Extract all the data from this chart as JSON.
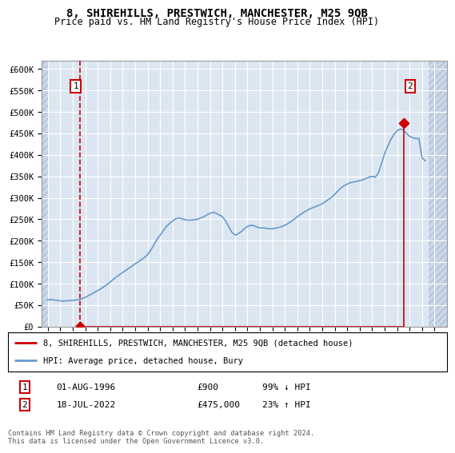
{
  "title": "8, SHIREHILLS, PRESTWICH, MANCHESTER, M25 9QB",
  "subtitle": "Price paid vs. HM Land Registry's House Price Index (HPI)",
  "ylim": [
    0,
    620000
  ],
  "yticks": [
    0,
    50000,
    100000,
    150000,
    200000,
    250000,
    300000,
    350000,
    400000,
    450000,
    500000,
    550000,
    600000
  ],
  "ytick_labels": [
    "£0",
    "£50K",
    "£100K",
    "£150K",
    "£200K",
    "£250K",
    "£300K",
    "£350K",
    "£400K",
    "£450K",
    "£500K",
    "£550K",
    "£600K"
  ],
  "xlim_start": 1993.5,
  "xlim_end": 2026.0,
  "hpi_color": "#6699cc",
  "sale_color": "#cc0000",
  "marker_color": "#cc0000",
  "background_plot": "#dce6f1",
  "background_hatch": "#c8d8e8",
  "grid_color": "#ffffff",
  "sale1_x": 1996.58,
  "sale1_y": 900,
  "sale2_x": 2022.54,
  "sale2_y": 475000,
  "hatch_left_end": 1994.0,
  "hatch_right_start": 2024.5,
  "legend_label1": "8, SHIREHILLS, PRESTWICH, MANCHESTER, M25 9QB (detached house)",
  "legend_label2": "HPI: Average price, detached house, Bury",
  "note1_date": "01-AUG-1996",
  "note1_price": "£900",
  "note1_hpi": "99% ↓ HPI",
  "note2_date": "18-JUL-2022",
  "note2_price": "£475,000",
  "note2_hpi": "23% ↑ HPI",
  "footer": "Contains HM Land Registry data © Crown copyright and database right 2024.\nThis data is licensed under the Open Government Licence v3.0.",
  "hpi_data_x": [
    1994.0,
    1994.25,
    1994.5,
    1994.75,
    1995.0,
    1995.25,
    1995.5,
    1995.75,
    1996.0,
    1996.25,
    1996.5,
    1996.75,
    1997.0,
    1997.25,
    1997.5,
    1997.75,
    1998.0,
    1998.25,
    1998.5,
    1998.75,
    1999.0,
    1999.25,
    1999.5,
    1999.75,
    2000.0,
    2000.25,
    2000.5,
    2000.75,
    2001.0,
    2001.25,
    2001.5,
    2001.75,
    2002.0,
    2002.25,
    2002.5,
    2002.75,
    2003.0,
    2003.25,
    2003.5,
    2003.75,
    2004.0,
    2004.25,
    2004.5,
    2004.75,
    2005.0,
    2005.25,
    2005.5,
    2005.75,
    2006.0,
    2006.25,
    2006.5,
    2006.75,
    2007.0,
    2007.25,
    2007.5,
    2007.75,
    2008.0,
    2008.25,
    2008.5,
    2008.75,
    2009.0,
    2009.25,
    2009.5,
    2009.75,
    2010.0,
    2010.25,
    2010.5,
    2010.75,
    2011.0,
    2011.25,
    2011.5,
    2011.75,
    2012.0,
    2012.25,
    2012.5,
    2012.75,
    2013.0,
    2013.25,
    2013.5,
    2013.75,
    2014.0,
    2014.25,
    2014.5,
    2014.75,
    2015.0,
    2015.25,
    2015.5,
    2015.75,
    2016.0,
    2016.25,
    2016.5,
    2016.75,
    2017.0,
    2017.25,
    2017.5,
    2017.75,
    2018.0,
    2018.25,
    2018.5,
    2018.75,
    2019.0,
    2019.25,
    2019.5,
    2019.75,
    2020.0,
    2020.25,
    2020.5,
    2020.75,
    2021.0,
    2021.25,
    2021.5,
    2021.75,
    2022.0,
    2022.25,
    2022.5,
    2022.75,
    2023.0,
    2023.25,
    2023.5,
    2023.75,
    2024.0,
    2024.25
  ],
  "hpi_data_y": [
    62000,
    63000,
    62000,
    61000,
    60000,
    59500,
    60000,
    60500,
    61000,
    62000,
    63000,
    65000,
    68000,
    72000,
    76000,
    80000,
    84000,
    88000,
    93000,
    98000,
    104000,
    110000,
    116000,
    121000,
    126000,
    131000,
    136000,
    141000,
    146000,
    151000,
    156000,
    161000,
    168000,
    178000,
    190000,
    203000,
    213000,
    223000,
    233000,
    240000,
    246000,
    251000,
    253000,
    251000,
    249000,
    248000,
    248000,
    249000,
    250000,
    253000,
    256000,
    260000,
    264000,
    266000,
    264000,
    260000,
    256000,
    246000,
    233000,
    220000,
    213000,
    216000,
    221000,
    228000,
    233000,
    236000,
    235000,
    232000,
    230000,
    230000,
    229000,
    228000,
    228000,
    229000,
    231000,
    233000,
    236000,
    240000,
    245000,
    250000,
    256000,
    261000,
    266000,
    270000,
    274000,
    277000,
    280000,
    283000,
    286000,
    291000,
    296000,
    301000,
    308000,
    316000,
    323000,
    328000,
    332000,
    335000,
    337000,
    338000,
    340000,
    342000,
    345000,
    348000,
    350000,
    348000,
    358000,
    380000,
    403000,
    420000,
    436000,
    448000,
    456000,
    460000,
    458000,
    450000,
    443000,
    440000,
    438000,
    438000,
    393000,
    386000
  ]
}
